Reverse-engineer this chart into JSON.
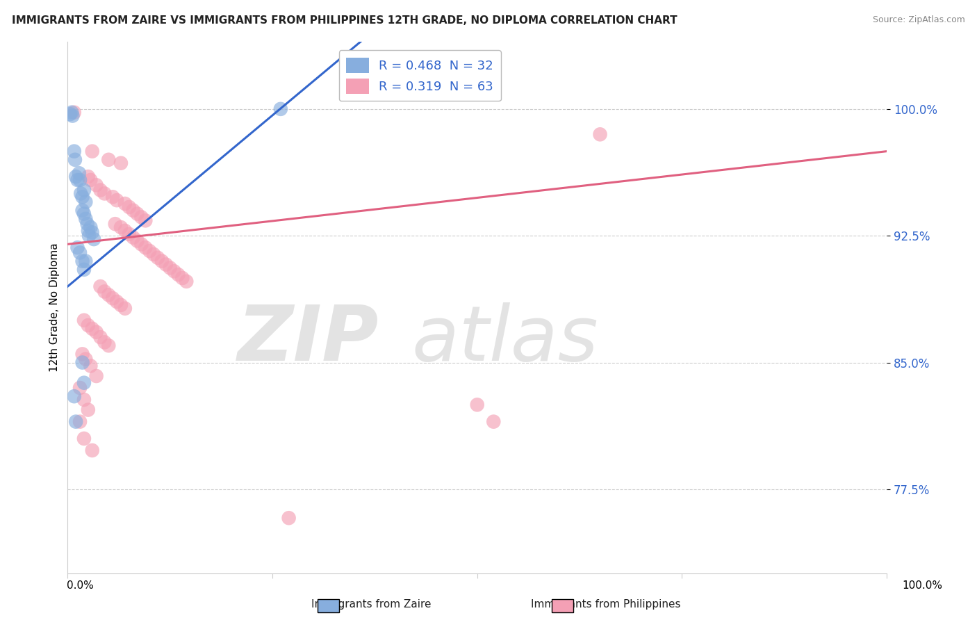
{
  "title": "IMMIGRANTS FROM ZAIRE VS IMMIGRANTS FROM PHILIPPINES 12TH GRADE, NO DIPLOMA CORRELATION CHART",
  "source": "Source: ZipAtlas.com",
  "ylabel": "12th Grade, No Diploma",
  "yticks": [
    "77.5%",
    "85.0%",
    "92.5%",
    "100.0%"
  ],
  "ytick_values": [
    0.775,
    0.85,
    0.925,
    1.0
  ],
  "xlim": [
    0.0,
    1.0
  ],
  "ylim": [
    0.725,
    1.04
  ],
  "legend_label_zaire": "R = 0.468  N = 32",
  "legend_label_phil": "R = 0.319  N = 63",
  "zaire_color": "#87AEDE",
  "philippines_color": "#F4A0B5",
  "zaire_line_color": "#3366CC",
  "philippines_line_color": "#E06080",
  "zaire_line": [
    0.0,
    0.895,
    1.0,
    1.3
  ],
  "philippines_line": [
    0.0,
    0.92,
    1.0,
    0.975
  ],
  "zaire_points": [
    [
      0.003,
      0.997
    ],
    [
      0.005,
      0.998
    ],
    [
      0.006,
      0.996
    ],
    [
      0.01,
      0.96
    ],
    [
      0.012,
      0.958
    ],
    [
      0.008,
      0.975
    ],
    [
      0.009,
      0.97
    ],
    [
      0.015,
      0.958
    ],
    [
      0.014,
      0.962
    ],
    [
      0.016,
      0.95
    ],
    [
      0.018,
      0.948
    ],
    [
      0.02,
      0.952
    ],
    [
      0.022,
      0.945
    ],
    [
      0.018,
      0.94
    ],
    [
      0.02,
      0.938
    ],
    [
      0.022,
      0.935
    ],
    [
      0.024,
      0.932
    ],
    [
      0.025,
      0.928
    ],
    [
      0.026,
      0.925
    ],
    [
      0.028,
      0.93
    ],
    [
      0.03,
      0.927
    ],
    [
      0.032,
      0.923
    ],
    [
      0.012,
      0.918
    ],
    [
      0.015,
      0.915
    ],
    [
      0.018,
      0.91
    ],
    [
      0.02,
      0.905
    ],
    [
      0.022,
      0.91
    ],
    [
      0.018,
      0.85
    ],
    [
      0.02,
      0.838
    ],
    [
      0.008,
      0.83
    ],
    [
      0.01,
      0.815
    ],
    [
      0.26,
      1.0
    ]
  ],
  "philippines_points": [
    [
      0.008,
      0.998
    ],
    [
      0.03,
      0.975
    ],
    [
      0.05,
      0.97
    ],
    [
      0.065,
      0.968
    ],
    [
      0.025,
      0.96
    ],
    [
      0.028,
      0.958
    ],
    [
      0.035,
      0.955
    ],
    [
      0.04,
      0.952
    ],
    [
      0.045,
      0.95
    ],
    [
      0.055,
      0.948
    ],
    [
      0.06,
      0.946
    ],
    [
      0.07,
      0.944
    ],
    [
      0.075,
      0.942
    ],
    [
      0.08,
      0.94
    ],
    [
      0.085,
      0.938
    ],
    [
      0.09,
      0.936
    ],
    [
      0.095,
      0.934
    ],
    [
      0.058,
      0.932
    ],
    [
      0.065,
      0.93
    ],
    [
      0.07,
      0.928
    ],
    [
      0.075,
      0.926
    ],
    [
      0.08,
      0.924
    ],
    [
      0.085,
      0.922
    ],
    [
      0.09,
      0.92
    ],
    [
      0.095,
      0.918
    ],
    [
      0.1,
      0.916
    ],
    [
      0.105,
      0.914
    ],
    [
      0.11,
      0.912
    ],
    [
      0.115,
      0.91
    ],
    [
      0.12,
      0.908
    ],
    [
      0.125,
      0.906
    ],
    [
      0.13,
      0.904
    ],
    [
      0.135,
      0.902
    ],
    [
      0.14,
      0.9
    ],
    [
      0.145,
      0.898
    ],
    [
      0.04,
      0.895
    ],
    [
      0.045,
      0.892
    ],
    [
      0.05,
      0.89
    ],
    [
      0.055,
      0.888
    ],
    [
      0.06,
      0.886
    ],
    [
      0.065,
      0.884
    ],
    [
      0.07,
      0.882
    ],
    [
      0.02,
      0.875
    ],
    [
      0.025,
      0.872
    ],
    [
      0.03,
      0.87
    ],
    [
      0.035,
      0.868
    ],
    [
      0.04,
      0.865
    ],
    [
      0.045,
      0.862
    ],
    [
      0.05,
      0.86
    ],
    [
      0.018,
      0.855
    ],
    [
      0.022,
      0.852
    ],
    [
      0.028,
      0.848
    ],
    [
      0.035,
      0.842
    ],
    [
      0.015,
      0.835
    ],
    [
      0.02,
      0.828
    ],
    [
      0.025,
      0.822
    ],
    [
      0.015,
      0.815
    ],
    [
      0.02,
      0.805
    ],
    [
      0.03,
      0.798
    ],
    [
      0.5,
      0.825
    ],
    [
      0.27,
      0.758
    ],
    [
      0.52,
      0.815
    ],
    [
      0.65,
      0.985
    ]
  ]
}
